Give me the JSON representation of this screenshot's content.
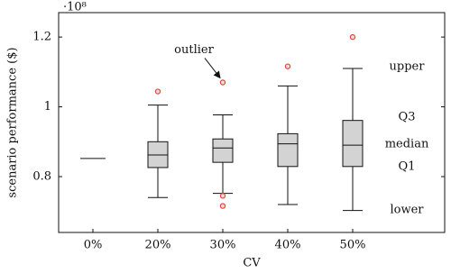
{
  "chart_data": {
    "type": "box",
    "y_multiplier": "·10⁸",
    "xlabel": "CV",
    "ylabel": "scenario performance ($)",
    "categories": [
      "0%",
      "20%",
      "30%",
      "40%",
      "50%"
    ],
    "boxes": [
      {
        "low": 0.852,
        "q1": 0.852,
        "median": 0.852,
        "q3": 0.852,
        "high": 0.852,
        "outliers": []
      },
      {
        "low": 0.74,
        "q1": 0.826,
        "median": 0.862,
        "q3": 0.9,
        "high": 1.005,
        "outliers": [
          1.044
        ]
      },
      {
        "low": 0.752,
        "q1": 0.841,
        "median": 0.882,
        "q3": 0.908,
        "high": 0.977,
        "outliers": [
          1.07,
          0.745,
          0.716
        ]
      },
      {
        "low": 0.72,
        "q1": 0.829,
        "median": 0.894,
        "q3": 0.923,
        "high": 1.06,
        "outliers": [
          1.116
        ]
      },
      {
        "low": 0.703,
        "q1": 0.829,
        "median": 0.89,
        "q3": 0.961,
        "high": 1.11,
        "outliers": [
          1.2
        ]
      }
    ],
    "box_color": "#d3d3d3",
    "outlier_color": "#e0463c",
    "ylim": [
      0.64,
      1.27
    ],
    "yticks": [
      0.8,
      1,
      1.2
    ],
    "annotation": "outlier",
    "legend_labels": [
      "upper",
      "Q3",
      "median",
      "Q1",
      "lower"
    ]
  }
}
